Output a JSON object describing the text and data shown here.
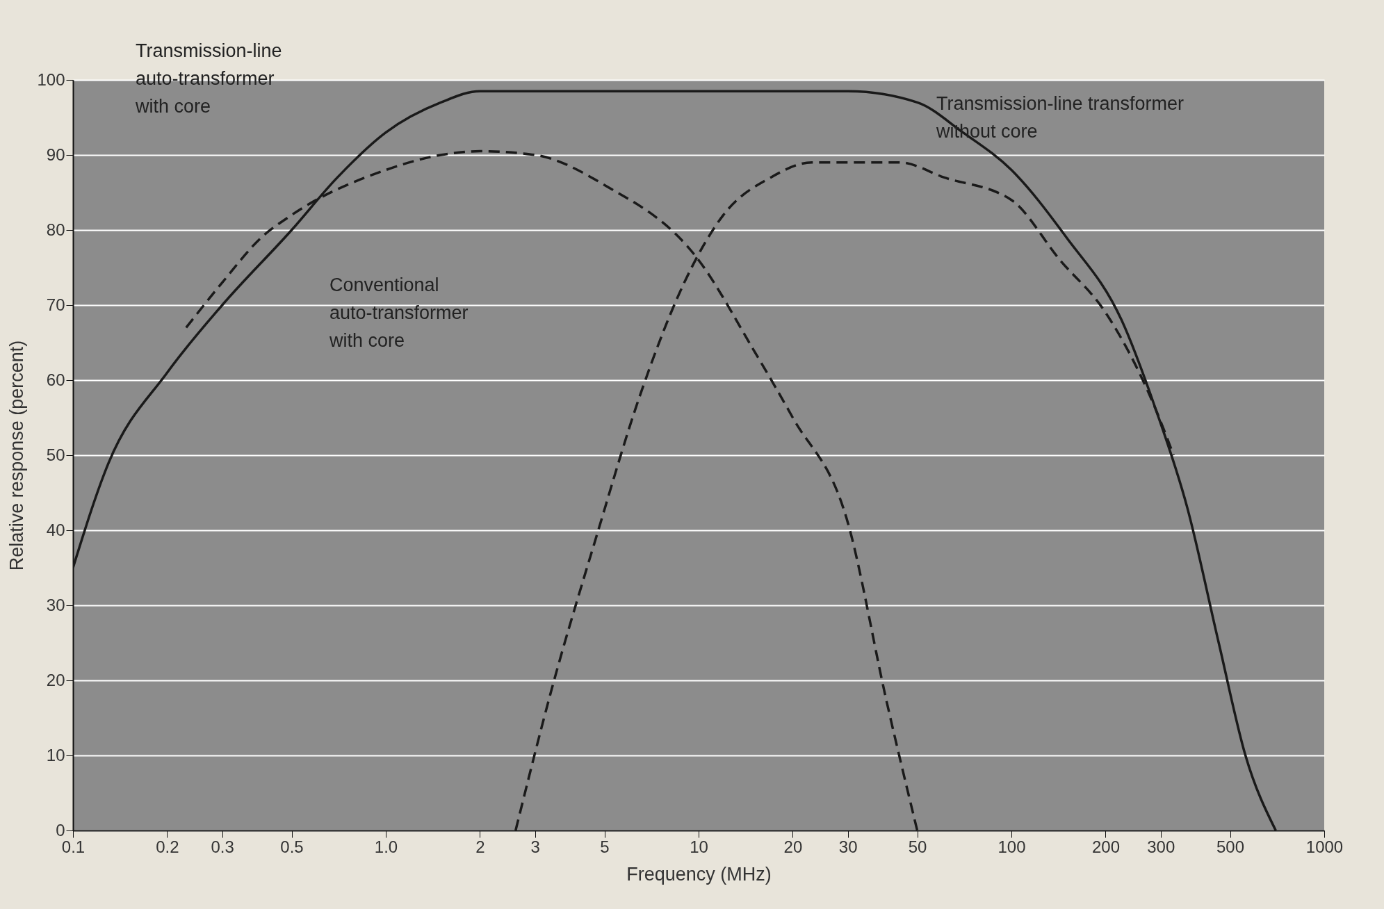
{
  "chart_data": {
    "type": "line",
    "xlabel": "Frequency (MHz)",
    "ylabel": "Relative response (percent)",
    "log": "x",
    "xlim": [
      0.1,
      1000
    ],
    "ylim": [
      0,
      100
    ],
    "xticks": [
      0.1,
      0.2,
      0.3,
      0.5,
      {
        "value": 1,
        "label": "1.0"
      },
      2,
      3,
      5,
      10,
      20,
      30,
      50,
      100,
      200,
      300,
      500,
      1000
    ],
    "yticks": [
      0,
      10,
      20,
      30,
      40,
      50,
      60,
      70,
      80,
      90,
      100
    ],
    "grid": "y",
    "series": [
      {
        "color": "#1a1a1a",
        "line_style": "solid",
        "x": [
          0.1,
          0.13,
          0.2,
          0.3,
          0.5,
          0.7,
          1,
          1.5,
          2,
          10,
          30,
          50,
          70,
          100,
          150,
          225,
          290,
          365,
          460,
          560,
          700
        ],
        "values": [
          35,
          49,
          61,
          70,
          80,
          87,
          93,
          97,
          98.5,
          98.5,
          98.5,
          97,
          93,
          88,
          79,
          68,
          56,
          43,
          25,
          10,
          0
        ]
      },
      {
        "color": "#1a1a1a",
        "line_style": "dashed",
        "x": [
          0.23,
          0.3,
          0.4,
          0.5,
          1,
          1.5,
          2,
          3,
          5,
          10,
          15,
          20,
          30,
          40,
          50
        ],
        "values": [
          67,
          73,
          79,
          82,
          88,
          90,
          90.5,
          90,
          86,
          76,
          64,
          55,
          41,
          17,
          0
        ]
      },
      {
        "color": "#1a1a1a",
        "line_style": "dashed",
        "x": [
          2.6,
          3.4,
          4.7,
          6.5,
          9,
          12,
          17,
          23,
          32,
          44,
          61,
          100,
          143,
          200,
          290,
          330
        ],
        "values": [
          0,
          19,
          39,
          58,
          73,
          82,
          87,
          89,
          89,
          89,
          87,
          84,
          76,
          69,
          56,
          50
        ]
      }
    ],
    "annotations": [
      "Transmission-line\nauto-transformer\nwith core",
      "Conventional\nauto-transformer\nwith core",
      "Transmission-line transformer\nwithout core"
    ]
  }
}
